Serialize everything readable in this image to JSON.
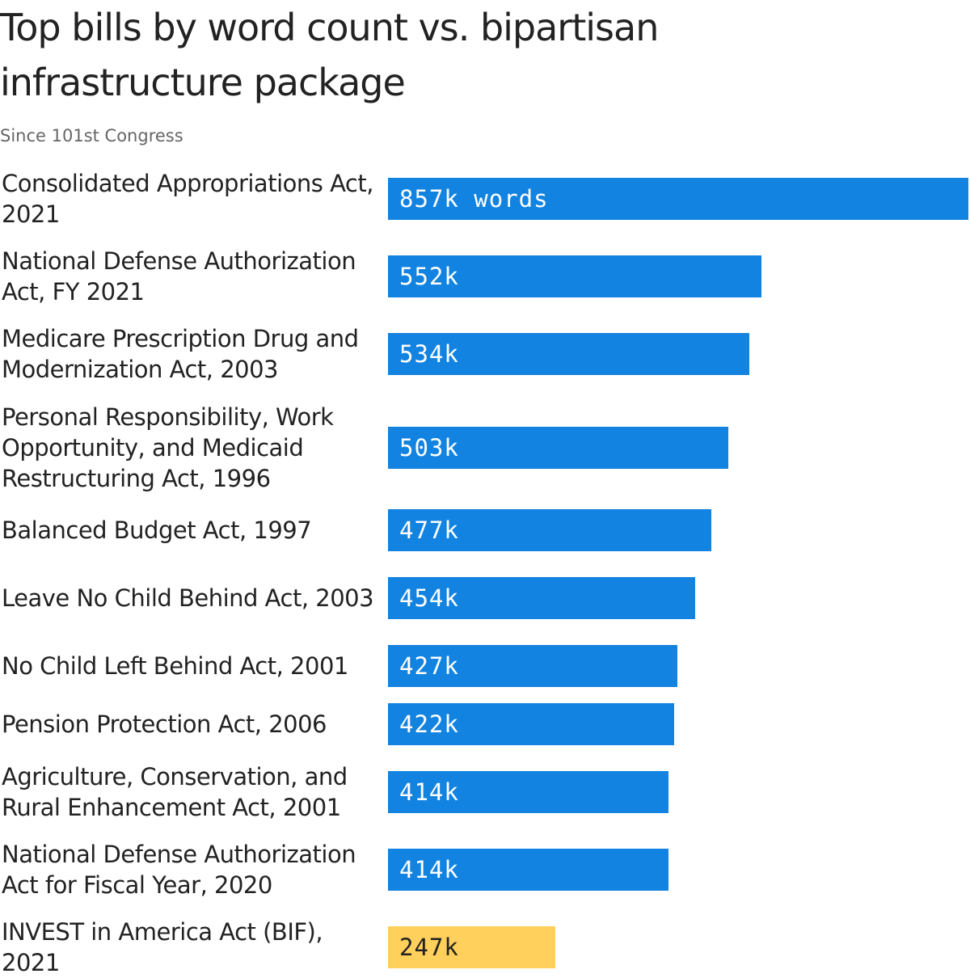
{
  "chart_data": {
    "type": "bar",
    "orientation": "horizontal",
    "title": "Top bills by word count vs. bipartisan infrastructure package",
    "subtitle": "Since 101st Congress",
    "categories": [
      "Consolidated Appropriations Act, 2021",
      "National Defense Authorization Act, FY 2021",
      "Medicare Prescription Drug and Modernization Act, 2003",
      "Personal Responsibility, Work Opportunity, and Medicaid Restructuring Act, 1996",
      "Balanced Budget Act, 1997",
      "Leave No Child Behind Act, 2003",
      "No Child Left Behind Act, 2001",
      "Pension Protection Act, 2006",
      "Agriculture, Conservation, and Rural Enhancement Act, 2001",
      "National Defense Authorization Act for Fiscal Year, 2020",
      "INVEST in America Act (BIF), 2021"
    ],
    "values": [
      857000,
      552000,
      534000,
      503000,
      477000,
      454000,
      427000,
      422000,
      414000,
      414000,
      247000
    ],
    "value_labels": [
      "857k words",
      "552k",
      "534k",
      "503k",
      "477k",
      "454k",
      "427k",
      "422k",
      "414k",
      "414k",
      "247k"
    ],
    "colors": [
      "#1283e0",
      "#1283e0",
      "#1283e0",
      "#1283e0",
      "#1283e0",
      "#1283e0",
      "#1283e0",
      "#1283e0",
      "#1283e0",
      "#1283e0",
      "#ffd05b"
    ]
  }
}
